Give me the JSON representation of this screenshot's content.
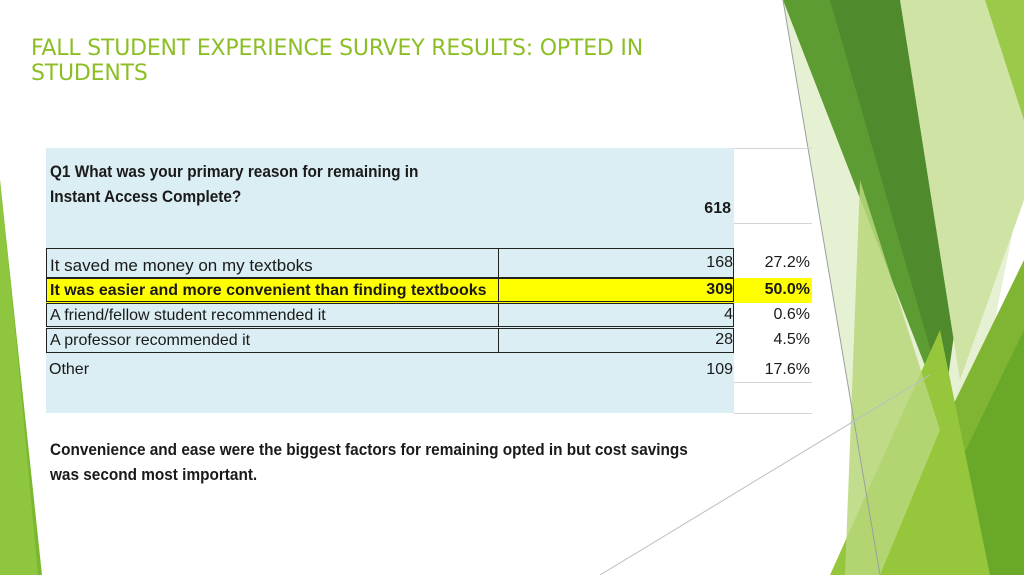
{
  "slide": {
    "title": "FALL STUDENT EXPERIENCE SURVEY RESULTS: OPTED IN STUDENTS"
  },
  "table": {
    "question": "Q1 What was your primary reason for remaining in Instant Access Complete?",
    "total": "618",
    "rows": [
      {
        "label": "It saved me money on my textboks",
        "count": "168",
        "percent": "27.2%"
      },
      {
        "label": "It was easier and more convenient than finding textbooks",
        "count": "309",
        "percent": "50.0%"
      },
      {
        "label": "A friend/fellow student recommended it",
        "count": "4",
        "percent": "0.6%"
      },
      {
        "label": "A professor recommended it",
        "count": "28",
        "percent": "4.5%"
      },
      {
        "label": "Other",
        "count": "109",
        "percent": "17.6%"
      }
    ],
    "conclusion": "Convenience and ease were the biggest factors for remaining opted in but cost savings was second most important."
  },
  "colors": {
    "title": "#8cbf26",
    "panel": "#dbeef3",
    "highlight": "#ffff00",
    "green_light": "#a7cf38",
    "green_dark": "#4a8a2a"
  }
}
